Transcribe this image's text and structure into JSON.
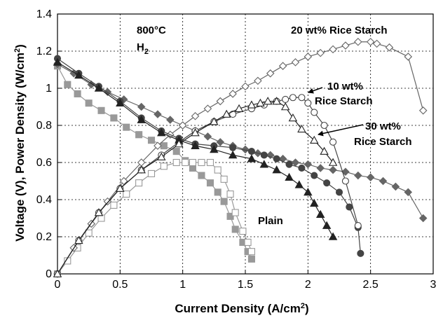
{
  "chart_data": {
    "type": "scatter",
    "title": "",
    "xlabel": "Current Density (A/cm²)",
    "ylabel": "Voltage (V), Power Density (W/cm²)",
    "xlim": [
      0,
      3
    ],
    "ylim": [
      0,
      1.4
    ],
    "xticks": [
      0,
      0.5,
      1,
      1.5,
      2,
      2.5,
      3
    ],
    "xtick_labels": [
      "0",
      "0.5",
      "1",
      "1.5",
      "2",
      "2.5",
      "3"
    ],
    "yticks": [
      0,
      0.2,
      0.4,
      0.6,
      0.8,
      1.0,
      1.2,
      1.4
    ],
    "ytick_labels": [
      "0",
      "0.2",
      "0.4",
      "0.6",
      "0.8",
      "1",
      "1.2",
      "1.4"
    ],
    "grid": "dotted",
    "annotations": {
      "condition_temp": "800°C",
      "condition_gas_main": "H",
      "condition_gas_sub": "2",
      "label_20": "20 wt% Rice Starch",
      "label_10_line1": "10 wt%",
      "label_10_line2": "Rice Starch",
      "label_30_line1": "30 wt%",
      "label_30_line2": "Rice Starch",
      "label_plain": "Plain"
    },
    "series": [
      {
        "kind": "voltage",
        "marker": "square",
        "filled": true,
        "color": "#999999",
        "group": "Plain",
        "points": [
          [
            0,
            1.12
          ],
          [
            0.08,
            1.02
          ],
          [
            0.16,
            0.97
          ],
          [
            0.25,
            0.92
          ],
          [
            0.35,
            0.88
          ],
          [
            0.45,
            0.84
          ],
          [
            0.55,
            0.79
          ],
          [
            0.65,
            0.75
          ],
          [
            0.75,
            0.72
          ],
          [
            0.85,
            0.69
          ],
          [
            0.95,
            0.66
          ],
          [
            1.02,
            0.61
          ],
          [
            1.08,
            0.57
          ],
          [
            1.15,
            0.53
          ],
          [
            1.22,
            0.49
          ],
          [
            1.28,
            0.44
          ],
          [
            1.33,
            0.39
          ],
          [
            1.38,
            0.31
          ],
          [
            1.42,
            0.24
          ],
          [
            1.48,
            0.17
          ],
          [
            1.52,
            0.12
          ],
          [
            1.55,
            0.08
          ]
        ]
      },
      {
        "kind": "power",
        "marker": "square",
        "filled": false,
        "color": "#999999",
        "group": "Plain",
        "points": [
          [
            0,
            0
          ],
          [
            0.08,
            0.07
          ],
          [
            0.16,
            0.14
          ],
          [
            0.25,
            0.22
          ],
          [
            0.35,
            0.3
          ],
          [
            0.45,
            0.37
          ],
          [
            0.55,
            0.43
          ],
          [
            0.65,
            0.49
          ],
          [
            0.75,
            0.54
          ],
          [
            0.85,
            0.58
          ],
          [
            0.95,
            0.6
          ],
          [
            1.02,
            0.6
          ],
          [
            1.08,
            0.6
          ],
          [
            1.15,
            0.6
          ],
          [
            1.22,
            0.6
          ],
          [
            1.28,
            0.56
          ],
          [
            1.33,
            0.51
          ],
          [
            1.38,
            0.43
          ],
          [
            1.42,
            0.33
          ],
          [
            1.48,
            0.23
          ],
          [
            1.52,
            0.17
          ],
          [
            1.55,
            0.12
          ]
        ]
      },
      {
        "kind": "voltage",
        "marker": "diamond",
        "filled": true,
        "color": "#666666",
        "group": "20 wt% Rice Starch",
        "points": [
          [
            0,
            1.13
          ],
          [
            0.13,
            1.08
          ],
          [
            0.27,
            1.02
          ],
          [
            0.4,
            0.98
          ],
          [
            0.53,
            0.94
          ],
          [
            0.67,
            0.9
          ],
          [
            0.8,
            0.86
          ],
          [
            0.9,
            0.83
          ],
          [
            1.0,
            0.8
          ],
          [
            1.1,
            0.77
          ],
          [
            1.2,
            0.74
          ],
          [
            1.3,
            0.71
          ],
          [
            1.4,
            0.69
          ],
          [
            1.5,
            0.67
          ],
          [
            1.6,
            0.65
          ],
          [
            1.7,
            0.64
          ],
          [
            1.8,
            0.62
          ],
          [
            1.9,
            0.6
          ],
          [
            2.0,
            0.59
          ],
          [
            2.1,
            0.57
          ],
          [
            2.2,
            0.56
          ],
          [
            2.3,
            0.55
          ],
          [
            2.4,
            0.53
          ],
          [
            2.5,
            0.52
          ],
          [
            2.6,
            0.5
          ],
          [
            2.7,
            0.47
          ],
          [
            2.8,
            0.44
          ],
          [
            2.92,
            0.3
          ]
        ]
      },
      {
        "kind": "power",
        "marker": "diamond",
        "filled": false,
        "color": "#666666",
        "group": "20 wt% Rice Starch",
        "points": [
          [
            0,
            0
          ],
          [
            0.13,
            0.14
          ],
          [
            0.27,
            0.27
          ],
          [
            0.4,
            0.39
          ],
          [
            0.53,
            0.5
          ],
          [
            0.67,
            0.6
          ],
          [
            0.8,
            0.69
          ],
          [
            0.9,
            0.75
          ],
          [
            1.0,
            0.8
          ],
          [
            1.1,
            0.85
          ],
          [
            1.2,
            0.89
          ],
          [
            1.3,
            0.93
          ],
          [
            1.4,
            0.97
          ],
          [
            1.5,
            1.01
          ],
          [
            1.6,
            1.04
          ],
          [
            1.7,
            1.08
          ],
          [
            1.8,
            1.12
          ],
          [
            1.9,
            1.14
          ],
          [
            2.0,
            1.17
          ],
          [
            2.1,
            1.19
          ],
          [
            2.2,
            1.21
          ],
          [
            2.3,
            1.23
          ],
          [
            2.4,
            1.25
          ],
          [
            2.5,
            1.25
          ],
          [
            2.55,
            1.24
          ],
          [
            2.65,
            1.22
          ],
          [
            2.8,
            1.17
          ],
          [
            2.92,
            0.88
          ]
        ]
      },
      {
        "kind": "voltage",
        "marker": "circle",
        "filled": true,
        "color": "#444444",
        "group": "10 wt% Rice Starch",
        "points": [
          [
            0,
            1.16
          ],
          [
            0.17,
            1.08
          ],
          [
            0.33,
            1.01
          ],
          [
            0.5,
            0.93
          ],
          [
            0.67,
            0.84
          ],
          [
            0.83,
            0.77
          ],
          [
            0.97,
            0.73
          ],
          [
            1.1,
            0.7
          ],
          [
            1.25,
            0.69
          ],
          [
            1.4,
            0.68
          ],
          [
            1.55,
            0.66
          ],
          [
            1.65,
            0.64
          ],
          [
            1.75,
            0.62
          ],
          [
            1.85,
            0.59
          ],
          [
            1.95,
            0.57
          ],
          [
            2.05,
            0.53
          ],
          [
            2.15,
            0.49
          ],
          [
            2.25,
            0.44
          ],
          [
            2.33,
            0.36
          ],
          [
            2.4,
            0.25
          ],
          [
            2.42,
            0.11
          ]
        ]
      },
      {
        "kind": "power",
        "marker": "circle",
        "filled": false,
        "color": "#444444",
        "group": "10 wt% Rice Starch",
        "points": [
          [
            0,
            0
          ],
          [
            0.17,
            0.18
          ],
          [
            0.33,
            0.33
          ],
          [
            0.5,
            0.46
          ],
          [
            0.67,
            0.56
          ],
          [
            0.83,
            0.64
          ],
          [
            0.97,
            0.71
          ],
          [
            1.1,
            0.77
          ],
          [
            1.25,
            0.82
          ],
          [
            1.4,
            0.86
          ],
          [
            1.55,
            0.89
          ],
          [
            1.65,
            0.91
          ],
          [
            1.75,
            0.93
          ],
          [
            1.82,
            0.94
          ],
          [
            1.88,
            0.95
          ],
          [
            1.95,
            0.95
          ],
          [
            2.0,
            0.92
          ],
          [
            2.05,
            0.87
          ],
          [
            2.13,
            0.8
          ],
          [
            2.2,
            0.71
          ],
          [
            2.3,
            0.5
          ],
          [
            2.4,
            0.26
          ]
        ]
      },
      {
        "kind": "voltage",
        "marker": "triangle",
        "filled": true,
        "color": "#222222",
        "group": "30 wt% Rice Starch",
        "points": [
          [
            0,
            1.14
          ],
          [
            0.17,
            1.07
          ],
          [
            0.33,
            1.0
          ],
          [
            0.5,
            0.92
          ],
          [
            0.67,
            0.83
          ],
          [
            0.83,
            0.76
          ],
          [
            0.97,
            0.72
          ],
          [
            1.1,
            0.69
          ],
          [
            1.25,
            0.67
          ],
          [
            1.4,
            0.64
          ],
          [
            1.55,
            0.62
          ],
          [
            1.65,
            0.59
          ],
          [
            1.75,
            0.56
          ],
          [
            1.85,
            0.52
          ],
          [
            1.93,
            0.48
          ],
          [
            2.0,
            0.44
          ],
          [
            2.05,
            0.38
          ],
          [
            2.1,
            0.32
          ],
          [
            2.15,
            0.26
          ],
          [
            2.2,
            0.2
          ]
        ]
      },
      {
        "kind": "power",
        "marker": "triangle",
        "filled": false,
        "color": "#222222",
        "group": "30 wt% Rice Starch",
        "points": [
          [
            0,
            0
          ],
          [
            0.17,
            0.18
          ],
          [
            0.33,
            0.33
          ],
          [
            0.5,
            0.46
          ],
          [
            0.67,
            0.56
          ],
          [
            0.83,
            0.63
          ],
          [
            0.97,
            0.7
          ],
          [
            1.1,
            0.76
          ],
          [
            1.25,
            0.82
          ],
          [
            1.35,
            0.86
          ],
          [
            1.45,
            0.89
          ],
          [
            1.55,
            0.91
          ],
          [
            1.62,
            0.92
          ],
          [
            1.68,
            0.93
          ],
          [
            1.75,
            0.93
          ],
          [
            1.82,
            0.9
          ],
          [
            1.88,
            0.84
          ],
          [
            1.95,
            0.78
          ],
          [
            2.05,
            0.72
          ],
          [
            2.13,
            0.66
          ],
          [
            2.2,
            0.6
          ]
        ]
      }
    ]
  }
}
